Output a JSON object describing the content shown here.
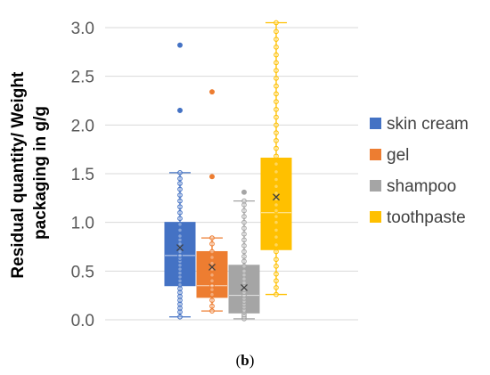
{
  "chart_data": {
    "type": "box",
    "ylabel_lines": [
      "Residual quantity/ Weight",
      "packaging in g/g"
    ],
    "ylim": [
      0,
      3.0
    ],
    "yticks": [
      "0.0",
      "0.5",
      "1.0",
      "1.5",
      "2.0",
      "2.5",
      "3.0"
    ],
    "grid": true,
    "legend_position": "right",
    "caption": {
      "open": "(",
      "letter": "b",
      "close": ")"
    },
    "series": [
      {
        "name": "skin cream",
        "color": "#4472C4",
        "min": 0.03,
        "q1": 0.35,
        "median": 0.66,
        "mean": 0.74,
        "q3": 1.0,
        "max": 1.51,
        "outliers": [
          2.15,
          2.82
        ],
        "points": [
          0.03,
          0.08,
          0.12,
          0.16,
          0.2,
          0.24,
          0.28,
          0.32,
          0.36,
          0.4,
          0.44,
          0.48,
          0.52,
          0.56,
          0.6,
          0.63,
          0.66,
          0.7,
          0.74,
          0.78,
          0.82,
          0.86,
          0.92,
          0.98,
          1.04,
          1.1,
          1.16,
          1.22,
          1.28,
          1.34,
          1.4,
          1.45,
          1.51,
          2.15,
          2.82
        ]
      },
      {
        "name": "gel",
        "color": "#ED7D31",
        "min": 0.09,
        "q1": 0.23,
        "median": 0.35,
        "mean": 0.54,
        "q3": 0.7,
        "max": 0.84,
        "outliers": [
          1.47,
          2.34
        ],
        "points": [
          0.09,
          0.14,
          0.2,
          0.26,
          0.31,
          0.35,
          0.4,
          0.46,
          0.52,
          0.58,
          0.64,
          0.7,
          0.78,
          0.84,
          1.47,
          2.34
        ]
      },
      {
        "name": "shampoo",
        "color": "#A5A5A5",
        "min": 0.01,
        "q1": 0.07,
        "median": 0.25,
        "mean": 0.33,
        "q3": 0.56,
        "max": 1.22,
        "outliers": [
          1.31
        ],
        "points": [
          0.01,
          0.03,
          0.05,
          0.08,
          0.1,
          0.13,
          0.16,
          0.19,
          0.22,
          0.25,
          0.28,
          0.31,
          0.34,
          0.38,
          0.42,
          0.46,
          0.5,
          0.55,
          0.6,
          0.65,
          0.7,
          0.76,
          0.82,
          0.88,
          0.94,
          1.0,
          1.06,
          1.12,
          1.18,
          1.22,
          1.31
        ]
      },
      {
        "name": "toothpaste",
        "color": "#FFC000",
        "min": 0.26,
        "q1": 0.72,
        "median": 1.1,
        "mean": 1.26,
        "q3": 1.66,
        "max": 3.05,
        "outliers": [],
        "points": [
          0.26,
          0.33,
          0.4,
          0.47,
          0.55,
          0.62,
          0.7,
          0.77,
          0.85,
          0.92,
          1.0,
          1.06,
          1.12,
          1.18,
          1.24,
          1.3,
          1.37,
          1.44,
          1.52,
          1.6,
          1.68,
          1.76,
          1.84,
          1.92,
          2.0,
          2.08,
          2.16,
          2.24,
          2.32,
          2.4,
          2.48,
          2.56,
          2.64,
          2.72,
          2.8,
          2.88,
          2.96,
          3.05
        ]
      }
    ]
  }
}
